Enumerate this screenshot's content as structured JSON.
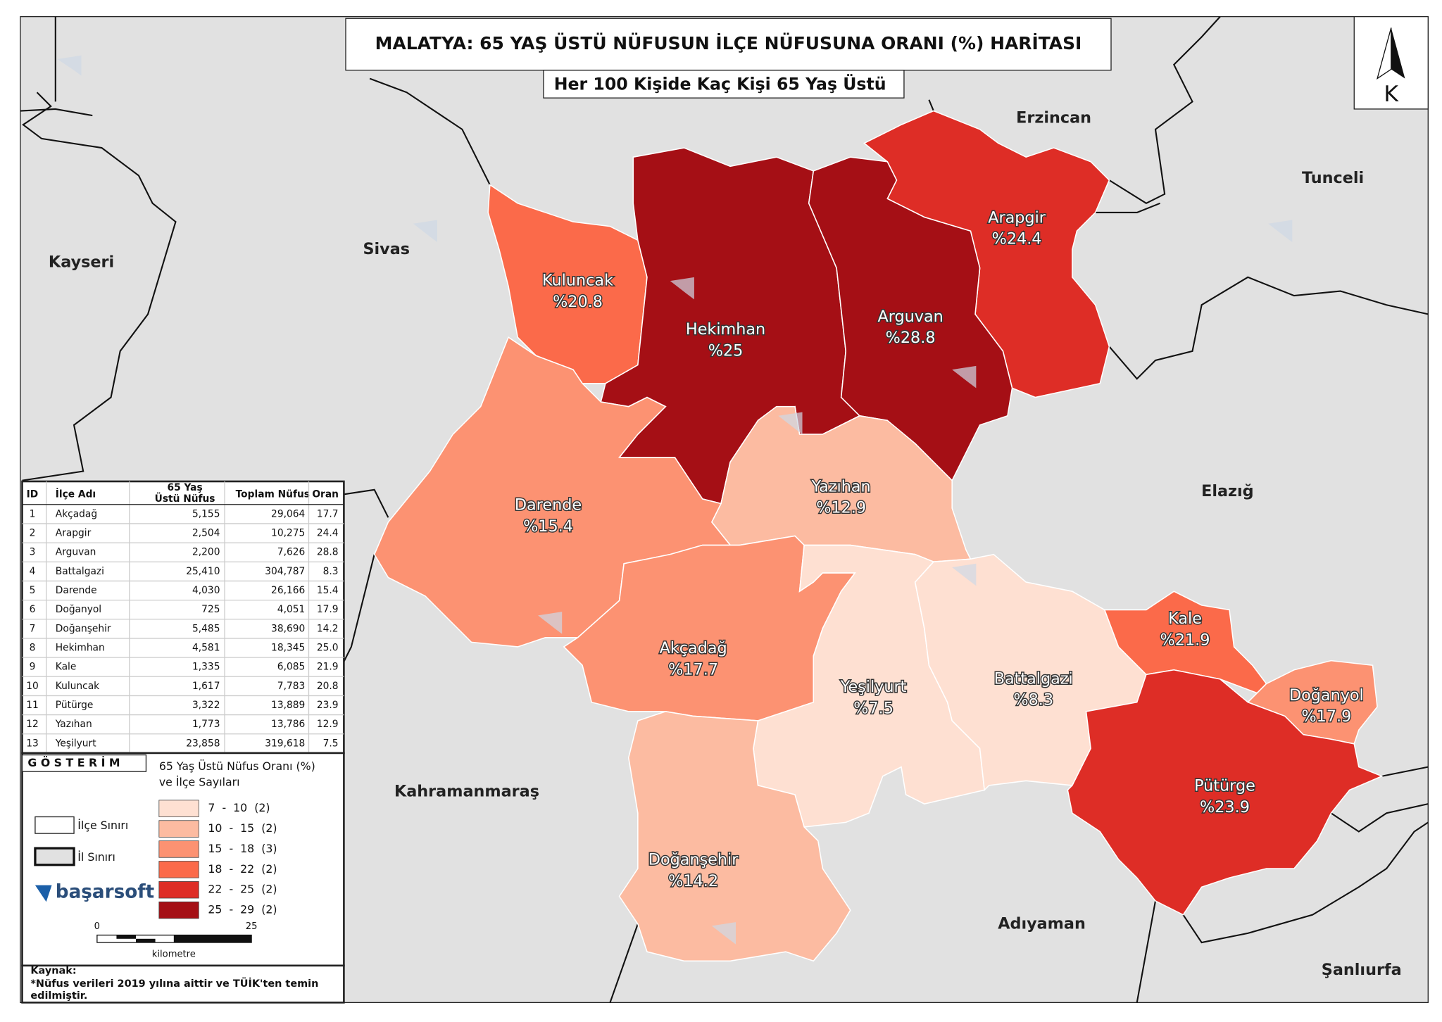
{
  "header": {
    "title": "MALATYA: 65 YAŞ ÜSTÜ NÜFUSUN İLÇE NÜFUSUNA ORANI (%) HARİTASI",
    "subtitle": "Her 100 Kişide Kaç Kişi 65 Yaş Üstü"
  },
  "north_arrow": "K",
  "neighbors": [
    "Erzincan",
    "Tunceli",
    "Kayseri",
    "Sivas",
    "Elazığ",
    "Kahramanmaraş",
    "Adıyaman",
    "Şanlıurfa"
  ],
  "districts": [
    {
      "name": "Arapgir",
      "label": "%24.4",
      "color": "#de2d26"
    },
    {
      "name": "Kuluncak",
      "label": "%20.8",
      "color": "#fb6a4a"
    },
    {
      "name": "Hekimhan",
      "label": "%25",
      "color": "#a50f15"
    },
    {
      "name": "Arguvan",
      "label": "%28.8",
      "color": "#a50f15"
    },
    {
      "name": "Yazıhan",
      "label": "%12.9",
      "color": "#fcbba1"
    },
    {
      "name": "Darende",
      "label": "%15.4",
      "color": "#fc9272"
    },
    {
      "name": "Akçadağ",
      "label": "%17.7",
      "color": "#fc9272"
    },
    {
      "name": "Yeşilyurt",
      "label": "%7.5",
      "color": "#fee0d2"
    },
    {
      "name": "Battalgazi",
      "label": "%8.3",
      "color": "#fee0d2"
    },
    {
      "name": "Kale",
      "label": "%21.9",
      "color": "#fb6a4a"
    },
    {
      "name": "Doğanyol",
      "label": "%17.9",
      "color": "#fc9272"
    },
    {
      "name": "Pütürge",
      "label": "%23.9",
      "color": "#de2d26"
    },
    {
      "name": "Doğanşehir",
      "label": "%14.2",
      "color": "#fcbba1"
    }
  ],
  "table": {
    "headers": [
      "ID",
      "İlçe Adı",
      [
        "65 Yaş",
        "Üstü Nüfus"
      ],
      "Toplam Nüfus",
      "Oran"
    ],
    "rows": [
      [
        "1",
        "Akçadağ",
        "5,155",
        "29,064",
        "17.7"
      ],
      [
        "2",
        "Arapgir",
        "2,504",
        "10,275",
        "24.4"
      ],
      [
        "3",
        "Arguvan",
        "2,200",
        "7,626",
        "28.8"
      ],
      [
        "4",
        "Battalgazi",
        "25,410",
        "304,787",
        "8.3"
      ],
      [
        "5",
        "Darende",
        "4,030",
        "26,166",
        "15.4"
      ],
      [
        "6",
        "Doğanyol",
        "725",
        "4,051",
        "17.9"
      ],
      [
        "7",
        "Doğanşehir",
        "5,485",
        "38,690",
        "14.2"
      ],
      [
        "8",
        "Hekimhan",
        "4,581",
        "18,345",
        "25.0"
      ],
      [
        "9",
        "Kale",
        "1,335",
        "6,085",
        "21.9"
      ],
      [
        "10",
        "Kuluncak",
        "1,617",
        "7,783",
        "20.8"
      ],
      [
        "11",
        "Pütürge",
        "3,322",
        "13,889",
        "23.9"
      ],
      [
        "12",
        "Yazıhan",
        "1,773",
        "13,786",
        "12.9"
      ],
      [
        "13",
        "Yeşilyurt",
        "23,858",
        "319,618",
        "7.5"
      ]
    ]
  },
  "legend": {
    "title": "G Ö S T E R İ M",
    "subtitle": [
      "65 Yaş Üstü Nüfus Oranı (%)",
      "ve İlçe Sayıları"
    ],
    "classes": [
      {
        "label": "7  -  10  (2)",
        "color": "#fee0d2"
      },
      {
        "label": "10  -  15  (2)",
        "color": "#fcbba1"
      },
      {
        "label": "15  -  18  (3)",
        "color": "#fc9272"
      },
      {
        "label": "18  -  22  (2)",
        "color": "#fb6a4a"
      },
      {
        "label": "22  -  25  (2)",
        "color": "#de2d26"
      },
      {
        "label": "25  -  29  (2)",
        "color": "#a50f15"
      }
    ],
    "district_border": "İlçe Sınırı",
    "province_border": "İl Sınırı",
    "logo": "başarsoft",
    "scale": {
      "start": "0",
      "end": "25",
      "unit": "kilometre"
    }
  },
  "source": {
    "title": "Kaynak:",
    "note": [
      "*Nüfus verileri 2019 yılına aittir ve TÜİK'ten temin",
      "edilmiştir."
    ]
  }
}
